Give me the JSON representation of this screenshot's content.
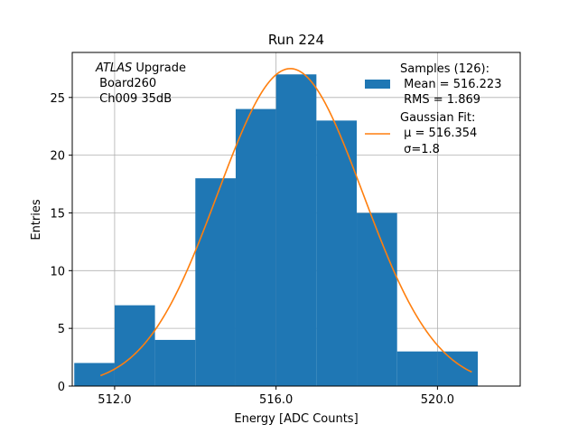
{
  "chart_data": {
    "type": "bar",
    "title": "Run 224",
    "xlabel": "Energy [ADC Counts]",
    "ylabel": "Entries",
    "xlim": [
      510.95,
      522.05
    ],
    "ylim": [
      0,
      28.9
    ],
    "grid": true,
    "xticks": [
      512.0,
      516.0,
      520.0
    ],
    "xtick_labels": [
      "512.0",
      "516.0",
      "520.0"
    ],
    "yticks": [
      0,
      5,
      10,
      15,
      20,
      25
    ],
    "ytick_labels": [
      "0",
      "5",
      "10",
      "15",
      "20",
      "25"
    ],
    "bar_color": "#1f77b4",
    "fit_color": "#ff7f0e",
    "histogram": {
      "bin_edges": [
        511.0,
        512.0,
        513.0,
        514.0,
        515.0,
        516.0,
        517.0,
        518.0,
        519.0,
        520.0,
        521.0
      ],
      "counts": [
        2,
        7,
        4,
        18,
        24,
        27,
        23,
        15,
        3,
        3
      ]
    },
    "fit": {
      "type": "gaussian",
      "mu": 516.354,
      "sigma": 1.8,
      "amplitude": 27.5,
      "x_range": [
        511.65,
        520.85
      ]
    },
    "annotation": {
      "line1_italic": "ATLAS",
      "line1_rest": " Upgrade",
      "line2": " Board260",
      "line3": " Ch009 35dB"
    },
    "legend": {
      "position": "top-right",
      "samples": [
        "Samples (126):",
        " Mean = 516.223",
        " RMS = 1.869"
      ],
      "fit": [
        "Gaussian Fit:",
        " μ = 516.354",
        " σ=1.8"
      ]
    }
  }
}
